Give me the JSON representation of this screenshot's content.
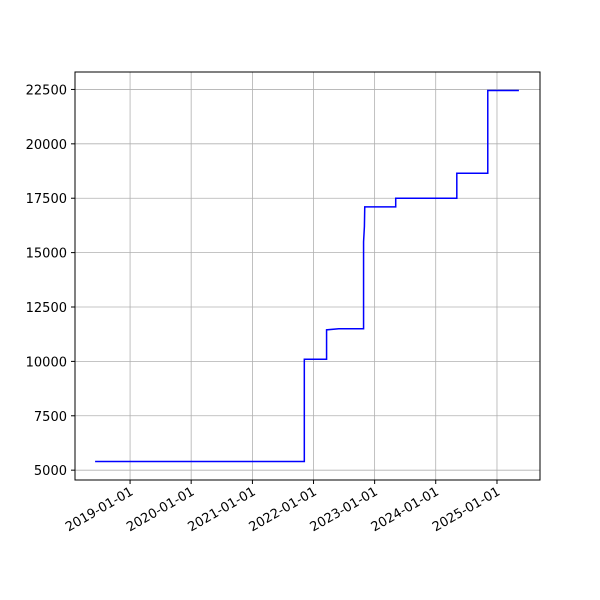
{
  "chart_data": {
    "type": "line",
    "x": [
      "2018-06-06",
      "2021-11-07",
      "2021-11-07",
      "2022-03-20",
      "2022-03-20",
      "2022-06-01",
      "2022-10-27",
      "2022-10-27",
      "2022-11-01",
      "2022-11-03",
      "2023-05-07",
      "2023-05-07",
      "2024-05-06",
      "2024-05-06",
      "2024-11-07",
      "2024-11-07",
      "2025-05-12"
    ],
    "series": [
      {
        "color": "#0000ff",
        "values": [
          5400,
          5400,
          10100,
          10100,
          11450,
          11500,
          11500,
          15500,
          16200,
          17100,
          17100,
          17500,
          17500,
          18650,
          18650,
          22450,
          22450
        ]
      }
    ],
    "xlim": [
      "2018-02-06",
      "2025-09-15"
    ],
    "xticks": [
      "2019-01-01",
      "2020-01-01",
      "2021-01-01",
      "2022-01-01",
      "2023-01-01",
      "2024-01-01",
      "2025-01-01"
    ],
    "ylim": [
      4548,
      23302
    ],
    "yticks": [
      5000,
      7500,
      10000,
      12500,
      15000,
      17500,
      20000,
      22500
    ],
    "grid": true
  }
}
